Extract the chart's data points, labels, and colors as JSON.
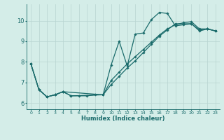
{
  "xlabel": "Humidex (Indice chaleur)",
  "background_color": "#d4ede8",
  "grid_color": "#b8d4d0",
  "line_color": "#1a6b6b",
  "xlim": [
    -0.5,
    23.5
  ],
  "ylim": [
    5.7,
    10.8
  ],
  "xticks": [
    0,
    1,
    2,
    3,
    4,
    5,
    6,
    7,
    8,
    9,
    10,
    11,
    12,
    13,
    14,
    15,
    16,
    17,
    18,
    19,
    20,
    21,
    22,
    23
  ],
  "yticks": [
    6,
    7,
    8,
    9,
    10
  ],
  "series1": {
    "x": [
      0,
      1,
      2,
      3,
      4,
      5,
      6,
      7,
      8,
      9,
      10,
      11,
      12,
      13,
      14,
      15,
      16,
      17,
      18,
      19,
      20,
      21,
      22,
      23
    ],
    "y": [
      7.9,
      6.65,
      6.3,
      6.4,
      6.55,
      6.35,
      6.35,
      6.35,
      6.4,
      6.4,
      7.85,
      9.0,
      7.8,
      9.35,
      9.4,
      10.05,
      10.4,
      10.35,
      9.75,
      9.8,
      9.85,
      9.5,
      9.6,
      9.5
    ]
  },
  "series2": {
    "x": [
      0,
      1,
      2,
      3,
      4,
      5,
      9,
      10,
      11,
      12,
      13,
      14,
      15,
      16,
      17,
      18,
      19,
      20,
      21,
      22,
      23
    ],
    "y": [
      7.9,
      6.65,
      6.3,
      6.4,
      6.55,
      6.35,
      6.4,
      7.1,
      7.5,
      7.9,
      8.25,
      8.6,
      8.95,
      9.3,
      9.6,
      9.8,
      9.9,
      9.95,
      9.6,
      9.6,
      9.5
    ]
  },
  "series3": {
    "x": [
      0,
      1,
      2,
      3,
      4,
      9,
      10,
      11,
      12,
      13,
      14,
      15,
      16,
      17,
      18,
      19,
      20,
      21,
      22,
      23
    ],
    "y": [
      7.9,
      6.65,
      6.3,
      6.4,
      6.55,
      6.4,
      6.9,
      7.3,
      7.7,
      8.05,
      8.45,
      8.85,
      9.25,
      9.55,
      9.85,
      9.85,
      9.85,
      9.55,
      9.6,
      9.5
    ]
  }
}
